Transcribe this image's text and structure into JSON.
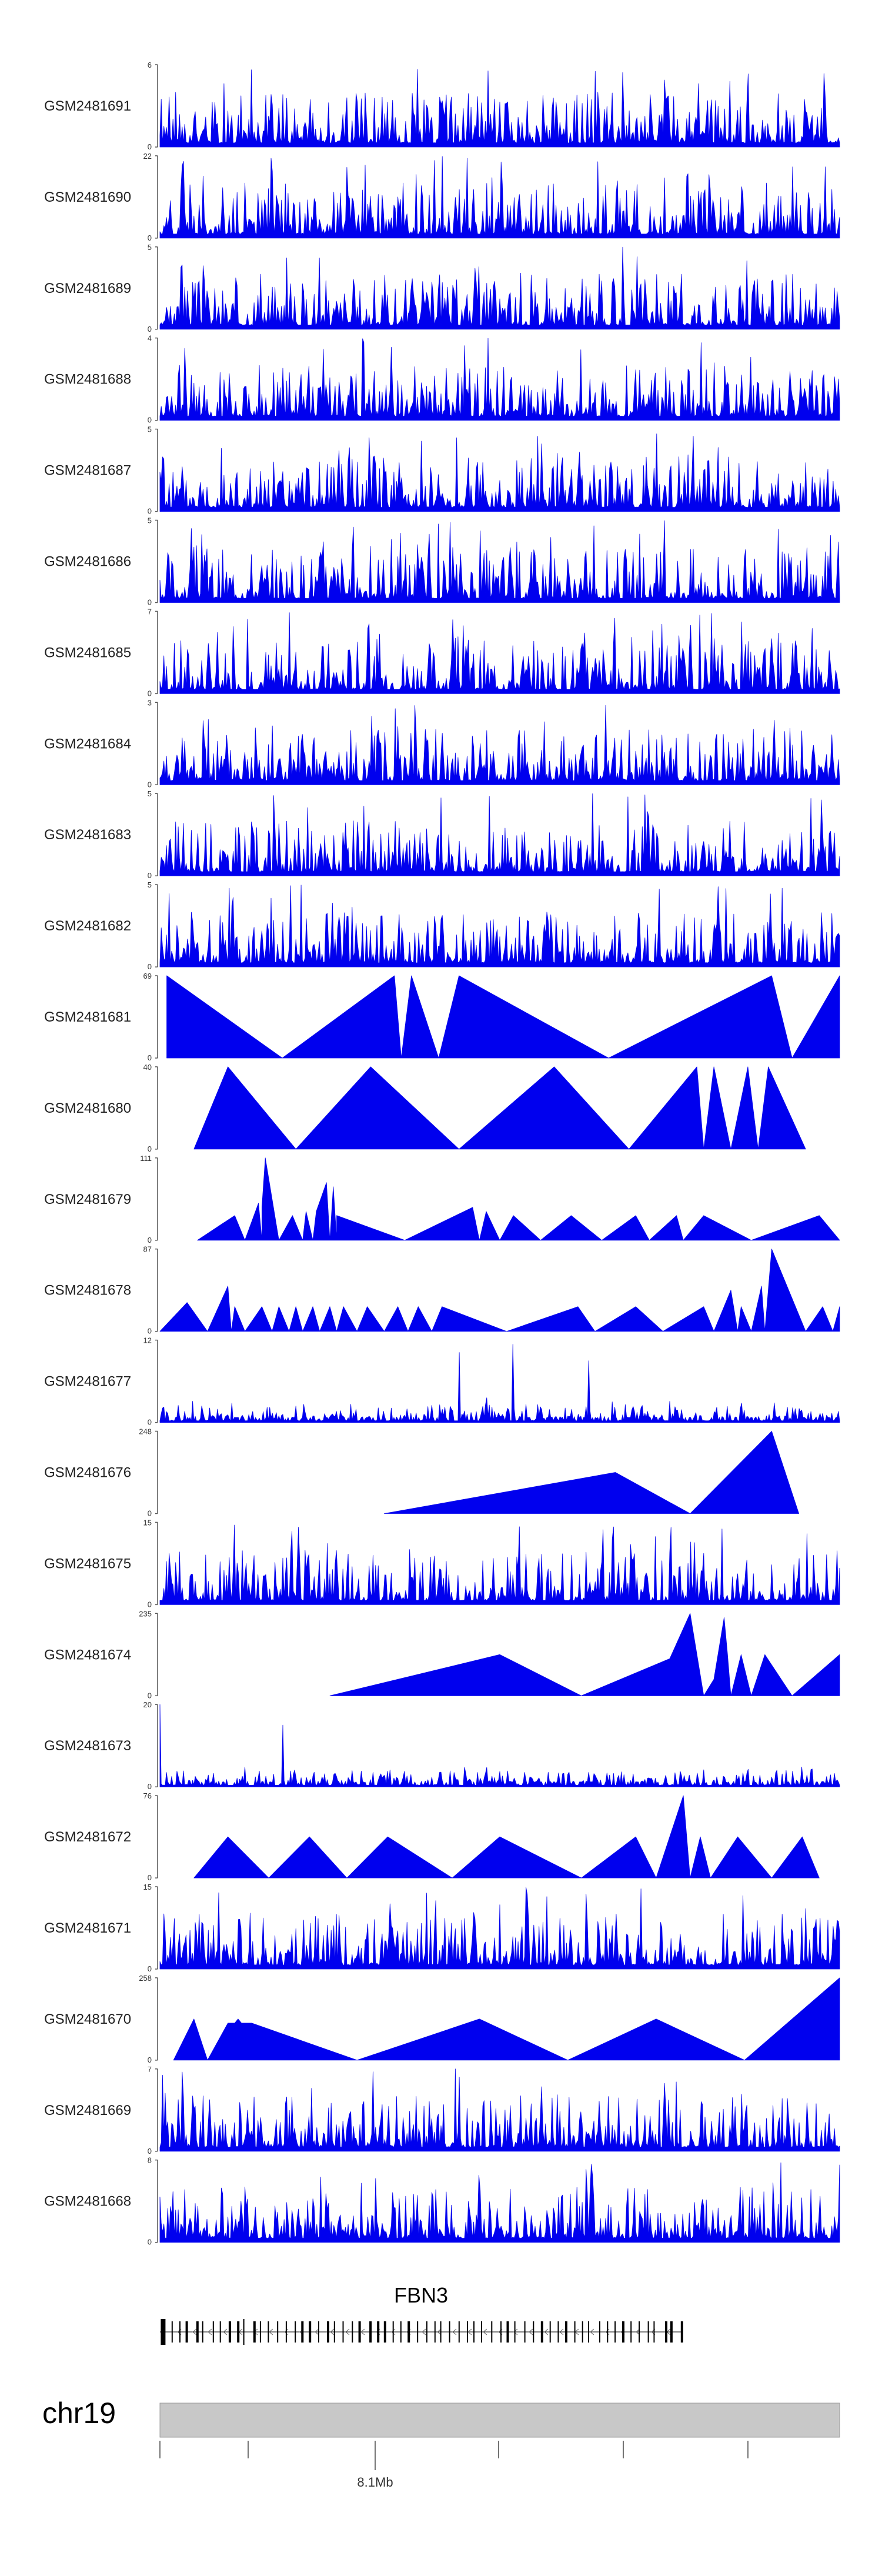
{
  "chart_data": {
    "type": "area",
    "title": "",
    "colors": {
      "signal": "#0000ee",
      "axis": "#555555",
      "ideogram": "#c8c8c8",
      "gene": "#000000"
    },
    "tracks": [
      {
        "name": "GSM2481691",
        "ymax": "6",
        "ymin": "0",
        "profile": "dense",
        "seed": 1
      },
      {
        "name": "GSM2481690",
        "ymax": "22",
        "ymin": "0",
        "profile": "teeth",
        "seed": 2
      },
      {
        "name": "GSM2481689",
        "ymax": "5",
        "ymin": "0",
        "profile": "dense",
        "seed": 3
      },
      {
        "name": "GSM2481688",
        "ymax": "4",
        "ymin": "0",
        "profile": "dense",
        "seed": 4
      },
      {
        "name": "GSM2481687",
        "ymax": "5",
        "ymin": "0",
        "profile": "dense",
        "seed": 5
      },
      {
        "name": "GSM2481686",
        "ymax": "5",
        "ymin": "0",
        "profile": "dense",
        "seed": 6
      },
      {
        "name": "GSM2481685",
        "ymax": "7",
        "ymin": "0",
        "profile": "dense",
        "seed": 7
      },
      {
        "name": "GSM2481684",
        "ymax": "3",
        "ymin": "0",
        "profile": "dense",
        "seed": 8
      },
      {
        "name": "GSM2481683",
        "ymax": "5",
        "ymin": "0",
        "profile": "dense",
        "seed": 9
      },
      {
        "name": "GSM2481682",
        "ymax": "5",
        "ymin": "0",
        "profile": "dense",
        "seed": 10
      },
      {
        "name": "GSM2481681",
        "ymax": "69",
        "ymin": "0",
        "profile": "poly",
        "pts": [
          [
            0.01,
            1
          ],
          [
            0.18,
            0
          ],
          [
            0.345,
            1
          ],
          [
            0.355,
            0
          ],
          [
            0.37,
            1
          ],
          [
            0.41,
            0
          ],
          [
            0.44,
            1
          ],
          [
            0.66,
            0
          ],
          [
            0.9,
            1
          ],
          [
            0.93,
            0
          ],
          [
            1.0,
            1
          ]
        ]
      },
      {
        "name": "GSM2481680",
        "ymax": "40",
        "ymin": "0",
        "profile": "poly",
        "pts": [
          [
            0.05,
            0
          ],
          [
            0.1,
            1
          ],
          [
            0.2,
            0
          ],
          [
            0.31,
            1
          ],
          [
            0.44,
            0
          ],
          [
            0.58,
            1
          ],
          [
            0.69,
            0
          ],
          [
            0.79,
            1
          ],
          [
            0.8,
            0
          ],
          [
            0.815,
            1
          ],
          [
            0.84,
            0
          ],
          [
            0.865,
            1
          ],
          [
            0.88,
            0
          ],
          [
            0.895,
            1
          ],
          [
            0.95,
            0
          ]
        ]
      },
      {
        "name": "GSM2481679",
        "ymax": "111",
        "ymin": "0",
        "profile": "poly",
        "pts": [
          [
            0.055,
            0
          ],
          [
            0.11,
            0.3
          ],
          [
            0.125,
            0
          ],
          [
            0.145,
            0.45
          ],
          [
            0.15,
            0
          ],
          [
            0.15,
            0.4
          ],
          [
            0.155,
            1
          ],
          [
            0.175,
            0
          ],
          [
            0.195,
            0.3
          ],
          [
            0.21,
            0
          ],
          [
            0.215,
            0.35
          ],
          [
            0.225,
            0
          ],
          [
            0.23,
            0.35
          ],
          [
            0.245,
            0.7
          ],
          [
            0.25,
            0
          ],
          [
            0.255,
            0.65
          ],
          [
            0.26,
            0
          ],
          [
            0.26,
            0.3
          ],
          [
            0.36,
            0
          ],
          [
            0.46,
            0.4
          ],
          [
            0.47,
            0
          ],
          [
            0.48,
            0.35
          ],
          [
            0.5,
            0
          ],
          [
            0.52,
            0.3
          ],
          [
            0.56,
            0
          ],
          [
            0.605,
            0.3
          ],
          [
            0.65,
            0
          ],
          [
            0.7,
            0.3
          ],
          [
            0.72,
            0
          ],
          [
            0.76,
            0.3
          ],
          [
            0.77,
            0
          ],
          [
            0.8,
            0.3
          ],
          [
            0.87,
            0
          ],
          [
            0.97,
            0.3
          ],
          [
            1.0,
            0
          ]
        ]
      },
      {
        "name": "GSM2481678",
        "ymax": "87",
        "ymin": "0",
        "profile": "poly",
        "pts": [
          [
            0.0,
            0
          ],
          [
            0.04,
            0.35
          ],
          [
            0.07,
            0
          ],
          [
            0.1,
            0.55
          ],
          [
            0.105,
            0
          ],
          [
            0.11,
            0.3
          ],
          [
            0.125,
            0
          ],
          [
            0.15,
            0.3
          ],
          [
            0.165,
            0
          ],
          [
            0.175,
            0.3
          ],
          [
            0.19,
            0
          ],
          [
            0.2,
            0.3
          ],
          [
            0.21,
            0
          ],
          [
            0.225,
            0.3
          ],
          [
            0.235,
            0
          ],
          [
            0.25,
            0.3
          ],
          [
            0.26,
            0
          ],
          [
            0.27,
            0.3
          ],
          [
            0.29,
            0
          ],
          [
            0.305,
            0.3
          ],
          [
            0.33,
            0
          ],
          [
            0.35,
            0.3
          ],
          [
            0.365,
            0
          ],
          [
            0.38,
            0.3
          ],
          [
            0.4,
            0
          ],
          [
            0.415,
            0.3
          ],
          [
            0.51,
            0
          ],
          [
            0.615,
            0.3
          ],
          [
            0.64,
            0
          ],
          [
            0.7,
            0.3
          ],
          [
            0.74,
            0
          ],
          [
            0.8,
            0.3
          ],
          [
            0.815,
            0
          ],
          [
            0.84,
            0.5
          ],
          [
            0.85,
            0
          ],
          [
            0.855,
            0.3
          ],
          [
            0.87,
            0
          ],
          [
            0.885,
            0.55
          ],
          [
            0.89,
            0
          ],
          [
            0.9,
            1
          ],
          [
            0.95,
            0
          ],
          [
            0.975,
            0.3
          ],
          [
            0.99,
            0
          ],
          [
            1.0,
            0.3
          ]
        ]
      },
      {
        "name": "GSM2481677",
        "ymax": "12",
        "ymin": "0",
        "profile": "sparse",
        "seed": 14,
        "spikes": [
          [
            0.44,
            0.85
          ],
          [
            0.52,
            0.95
          ],
          [
            0.63,
            0.75
          ],
          [
            0.48,
            0.3
          ],
          [
            0.2,
            0.2
          ]
        ]
      },
      {
        "name": "GSM2481676",
        "ymax": "248",
        "ymin": "0",
        "profile": "poly",
        "pts": [
          [
            0.33,
            0
          ],
          [
            0.67,
            0.5
          ],
          [
            0.78,
            0
          ],
          [
            0.9,
            1
          ],
          [
            0.94,
            0
          ]
        ]
      },
      {
        "name": "GSM2481675",
        "ymax": "15",
        "ymin": "0",
        "profile": "dense",
        "seed": 16
      },
      {
        "name": "GSM2481674",
        "ymax": "235",
        "ymin": "0",
        "profile": "poly",
        "pts": [
          [
            0.25,
            0
          ],
          [
            0.5,
            0.5
          ],
          [
            0.62,
            0
          ],
          [
            0.75,
            0.45
          ],
          [
            0.78,
            1
          ],
          [
            0.8,
            0
          ],
          [
            0.815,
            0.2
          ],
          [
            0.83,
            0.95
          ],
          [
            0.835,
            0.5
          ],
          [
            0.84,
            0
          ],
          [
            0.855,
            0.5
          ],
          [
            0.87,
            0
          ],
          [
            0.89,
            0.5
          ],
          [
            0.93,
            0
          ],
          [
            1.0,
            0.5
          ]
        ]
      },
      {
        "name": "GSM2481673",
        "ymax": "20",
        "ymin": "0",
        "profile": "sparse",
        "seed": 18,
        "spikes": [
          [
            0.0,
            1.0
          ],
          [
            0.18,
            0.75
          ]
        ]
      },
      {
        "name": "GSM2481672",
        "ymax": "76",
        "ymin": "0",
        "profile": "poly",
        "pts": [
          [
            0.05,
            0
          ],
          [
            0.1,
            0.5
          ],
          [
            0.16,
            0
          ],
          [
            0.22,
            0.5
          ],
          [
            0.275,
            0
          ],
          [
            0.335,
            0.5
          ],
          [
            0.43,
            0
          ],
          [
            0.5,
            0.5
          ],
          [
            0.62,
            0
          ],
          [
            0.7,
            0.5
          ],
          [
            0.73,
            0
          ],
          [
            0.77,
            1
          ],
          [
            0.78,
            0
          ],
          [
            0.795,
            0.5
          ],
          [
            0.81,
            0
          ],
          [
            0.85,
            0.5
          ],
          [
            0.9,
            0
          ],
          [
            0.945,
            0.5
          ],
          [
            0.97,
            0
          ]
        ]
      },
      {
        "name": "GSM2481671",
        "ymax": "15",
        "ymin": "0",
        "profile": "dense",
        "seed": 20
      },
      {
        "name": "GSM2481670",
        "ymax": "258",
        "ymin": "0",
        "profile": "poly",
        "pts": [
          [
            0.02,
            0
          ],
          [
            0.05,
            0.5
          ],
          [
            0.07,
            0
          ],
          [
            0.1,
            0.45
          ],
          [
            0.11,
            0.45
          ],
          [
            0.115,
            0.5
          ],
          [
            0.12,
            0.45
          ],
          [
            0.135,
            0.45
          ],
          [
            0.29,
            0
          ],
          [
            0.47,
            0.5
          ],
          [
            0.6,
            0
          ],
          [
            0.73,
            0.5
          ],
          [
            0.86,
            0
          ],
          [
            1.0,
            1
          ]
        ]
      },
      {
        "name": "GSM2481669",
        "ymax": "7",
        "ymin": "0",
        "profile": "dense",
        "seed": 22,
        "spikes": [
          [
            0.435,
            1.0
          ],
          [
            0.44,
            0.9
          ]
        ]
      },
      {
        "name": "GSM2481668",
        "ymax": "8",
        "ymin": "0",
        "profile": "dense",
        "seed": 23
      }
    ],
    "gene": {
      "name": "FBN3",
      "exon_count": 64
    },
    "chromosome": {
      "name": "chr19"
    },
    "axis": {
      "tick_count": 6,
      "labeled_tick_index": 2,
      "labeled_tick_text": "8.1Mb"
    }
  }
}
